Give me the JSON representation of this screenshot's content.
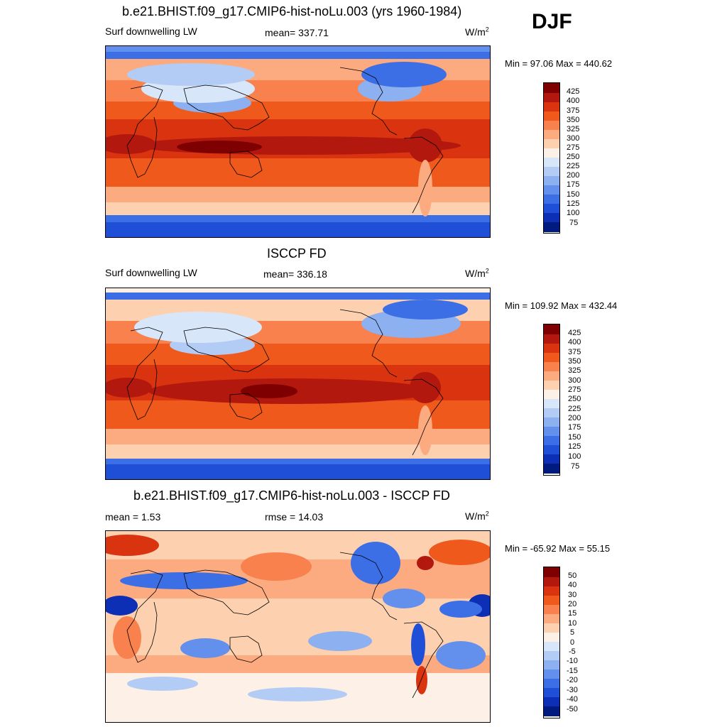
{
  "season": "DJF",
  "panels": [
    {
      "title": "b.e21.BHIST.f09_g17.CMIP6-hist-noLu.003 (yrs 1960-1984)",
      "left_label": "Surf downwelling LW",
      "center_label": "mean= 337.71",
      "units": "W/m",
      "units_sup": "2",
      "minmax": "Min =  97.06 Max = 440.62",
      "colorbar_labels": [
        "425",
        "400",
        "375",
        "350",
        "325",
        "300",
        "275",
        "250",
        "225",
        "200",
        "175",
        "150",
        "125",
        "100",
        "75"
      ]
    },
    {
      "title": "ISCCP FD",
      "left_label": "Surf downwelling LW",
      "center_label": "mean= 336.18",
      "units": "W/m",
      "units_sup": "2",
      "minmax": "Min = 109.92 Max = 432.44",
      "colorbar_labels": [
        "425",
        "400",
        "375",
        "350",
        "325",
        "300",
        "275",
        "250",
        "225",
        "200",
        "175",
        "150",
        "125",
        "100",
        "75"
      ]
    },
    {
      "title": "b.e21.BHIST.f09_g17.CMIP6-hist-noLu.003 - ISCCP FD",
      "left_label": "mean =   1.53",
      "center_label": "rmse =  14.03",
      "units": "W/m",
      "units_sup": "2",
      "minmax": "Min = -65.92 Max =  55.15",
      "colorbar_labels": [
        "50",
        "40",
        "30",
        "20",
        "15",
        "10",
        "5",
        "0",
        "-5",
        "-10",
        "-15",
        "-20",
        "-30",
        "-40",
        "-50"
      ]
    }
  ],
  "colors": {
    "diverging": [
      "#7f0000",
      "#b2180e",
      "#d9340f",
      "#ef5a1c",
      "#f8814d",
      "#fcaa7f",
      "#fdd0b0",
      "#fdf0e6",
      "#d8e6fa",
      "#b3ccf5",
      "#8cb0f0",
      "#6290ec",
      "#3c6ee6",
      "#1f4fd6",
      "#0c2fb5",
      "#001a80"
    ]
  }
}
